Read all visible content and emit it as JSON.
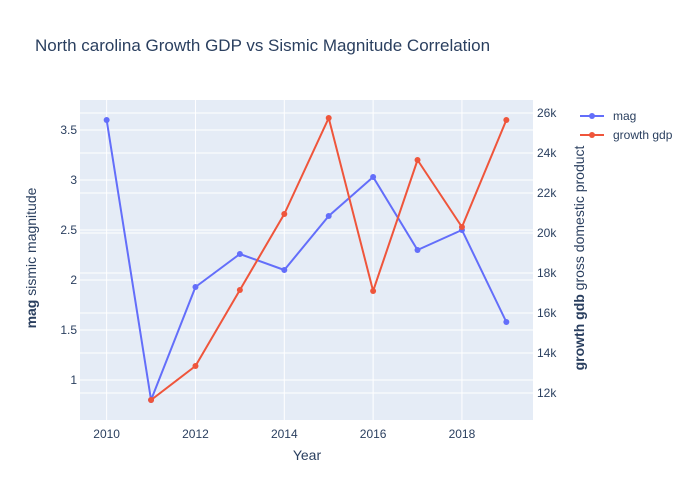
{
  "chart_data": {
    "type": "line",
    "title": "North carolina Growth GDP vs Sismic Magnitude Correlation",
    "xlabel": "Year",
    "ylabel_left_bold": "mag",
    "ylabel_left_rest": " sismic magnitude",
    "ylabel_right_bold": "growth gdb",
    "ylabel_right_rest": " gross domestic product",
    "x": [
      2010,
      2011,
      2012,
      2013,
      2014,
      2015,
      2016,
      2017,
      2018,
      2019
    ],
    "xlim": [
      2009.4,
      2019.6
    ],
    "x_ticks": [
      2010,
      2012,
      2014,
      2016,
      2018
    ],
    "x_tick_labels": [
      "2010",
      "2012",
      "2014",
      "2016",
      "2018"
    ],
    "y_left_lim": [
      0.6,
      3.8
    ],
    "y_left_ticks": [
      1,
      1.5,
      2,
      2.5,
      3,
      3.5
    ],
    "y_left_tick_labels": [
      "1",
      "1.5",
      "2",
      "2.5",
      "3",
      "3.5"
    ],
    "y_right_lim": [
      10650,
      26650
    ],
    "y_right_ticks": [
      12000,
      14000,
      16000,
      18000,
      20000,
      22000,
      24000,
      26000
    ],
    "y_right_tick_labels": [
      "12k",
      "14k",
      "16k",
      "18k",
      "20k",
      "22k",
      "24k",
      "26k"
    ],
    "grid": true,
    "legend_position": "top-right, outside plot",
    "series": [
      {
        "name": "mag",
        "axis": "left",
        "color": "#636efa",
        "values": [
          3.6,
          0.8,
          1.93,
          2.26,
          2.1,
          2.64,
          3.03,
          2.3,
          2.5,
          1.58
        ]
      },
      {
        "name": "growth gdp",
        "axis": "right",
        "color": "#ef553b",
        "values": [
          null,
          11650,
          13350,
          17150,
          20950,
          25750,
          17100,
          23650,
          20300,
          25650
        ]
      }
    ],
    "plot_background": "#e5ecf6",
    "gridline_color": "#ffffff"
  }
}
